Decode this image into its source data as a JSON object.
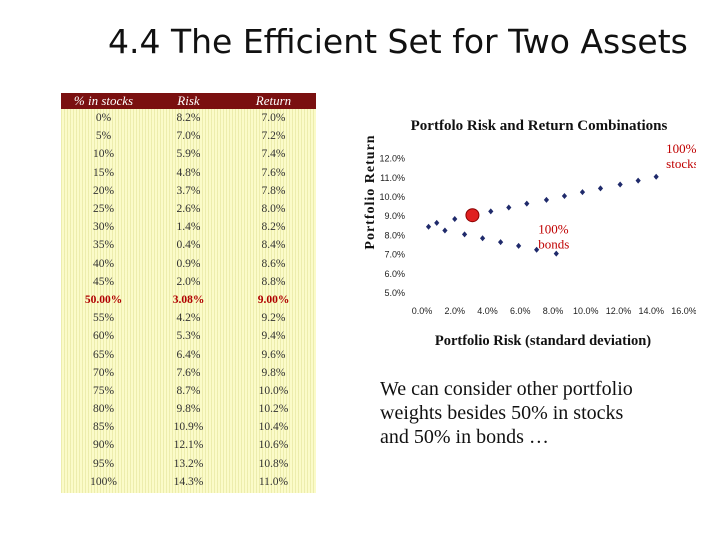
{
  "slide": {
    "title": "4.4 The Efficient Set for Two Assets"
  },
  "table": {
    "headers": [
      "% in stocks",
      "Risk",
      "Return"
    ],
    "rows": [
      [
        "0%",
        "8.2%",
        "7.0%"
      ],
      [
        "5%",
        "7.0%",
        "7.2%"
      ],
      [
        "10%",
        "5.9%",
        "7.4%"
      ],
      [
        "15%",
        "4.8%",
        "7.6%"
      ],
      [
        "20%",
        "3.7%",
        "7.8%"
      ],
      [
        "25%",
        "2.6%",
        "8.0%"
      ],
      [
        "30%",
        "1.4%",
        "8.2%"
      ],
      [
        "35%",
        "0.4%",
        "8.4%"
      ],
      [
        "40%",
        "0.9%",
        "8.6%"
      ],
      [
        "45%",
        "2.0%",
        "8.8%"
      ],
      [
        "50.00%",
        "3.08%",
        "9.00%"
      ],
      [
        "55%",
        "4.2%",
        "9.2%"
      ],
      [
        "60%",
        "5.3%",
        "9.4%"
      ],
      [
        "65%",
        "6.4%",
        "9.6%"
      ],
      [
        "70%",
        "7.6%",
        "9.8%"
      ],
      [
        "75%",
        "8.7%",
        "10.0%"
      ],
      [
        "80%",
        "9.8%",
        "10.2%"
      ],
      [
        "85%",
        "10.9%",
        "10.4%"
      ],
      [
        "90%",
        "12.1%",
        "10.6%"
      ],
      [
        "95%",
        "13.2%",
        "10.8%"
      ],
      [
        "100%",
        "14.3%",
        "11.0%"
      ]
    ],
    "highlight_row": 10
  },
  "chart_data": {
    "type": "scatter",
    "title": "Portfolo Risk and Return Combinations",
    "xlabel": "Portfolio Risk (standard deviation)",
    "ylabel": "Portfolio Return",
    "xlim": [
      0,
      16
    ],
    "ylim": [
      5,
      12.5
    ],
    "x_ticks": [
      "0.0%",
      "2.0%",
      "4.0%",
      "6.0%",
      "8.0%",
      "10.0%",
      "12.0%",
      "14.0%",
      "16.0%"
    ],
    "y_ticks": [
      "5.0%",
      "6.0%",
      "7.0%",
      "8.0%",
      "9.0%",
      "10.0%",
      "11.0%",
      "12.0%"
    ],
    "y_tick_values": [
      5,
      6,
      7,
      8,
      9,
      10,
      11,
      12
    ],
    "x_tick_values": [
      0,
      2,
      4,
      6,
      8,
      10,
      12,
      14,
      16
    ],
    "point_color": "#1f2a6b",
    "highlight_color": "#e02020",
    "points": [
      {
        "x": 8.2,
        "y": 7.0
      },
      {
        "x": 7.0,
        "y": 7.2
      },
      {
        "x": 5.9,
        "y": 7.4
      },
      {
        "x": 4.8,
        "y": 7.6
      },
      {
        "x": 3.7,
        "y": 7.8
      },
      {
        "x": 2.6,
        "y": 8.0
      },
      {
        "x": 1.4,
        "y": 8.2
      },
      {
        "x": 0.4,
        "y": 8.4
      },
      {
        "x": 0.9,
        "y": 8.6
      },
      {
        "x": 2.0,
        "y": 8.8
      },
      {
        "x": 3.08,
        "y": 9.0
      },
      {
        "x": 4.2,
        "y": 9.2
      },
      {
        "x": 5.3,
        "y": 9.4
      },
      {
        "x": 6.4,
        "y": 9.6
      },
      {
        "x": 7.6,
        "y": 9.8
      },
      {
        "x": 8.7,
        "y": 10.0
      },
      {
        "x": 9.8,
        "y": 10.2
      },
      {
        "x": 10.9,
        "y": 10.4
      },
      {
        "x": 12.1,
        "y": 10.6
      },
      {
        "x": 13.2,
        "y": 10.8
      },
      {
        "x": 14.3,
        "y": 11.0
      }
    ],
    "highlight_point_index": 10,
    "annotations": [
      {
        "text1": "100%",
        "text2": "stocks",
        "x": 14.3,
        "y": 11.0,
        "color": "#c00000"
      },
      {
        "text1": "100%",
        "text2": "bonds",
        "x": 8.2,
        "y": 7.0,
        "color": "#c00000"
      }
    ]
  },
  "caption": "We can consider other portfolio weights besides 50% in stocks and 50% in bonds …"
}
